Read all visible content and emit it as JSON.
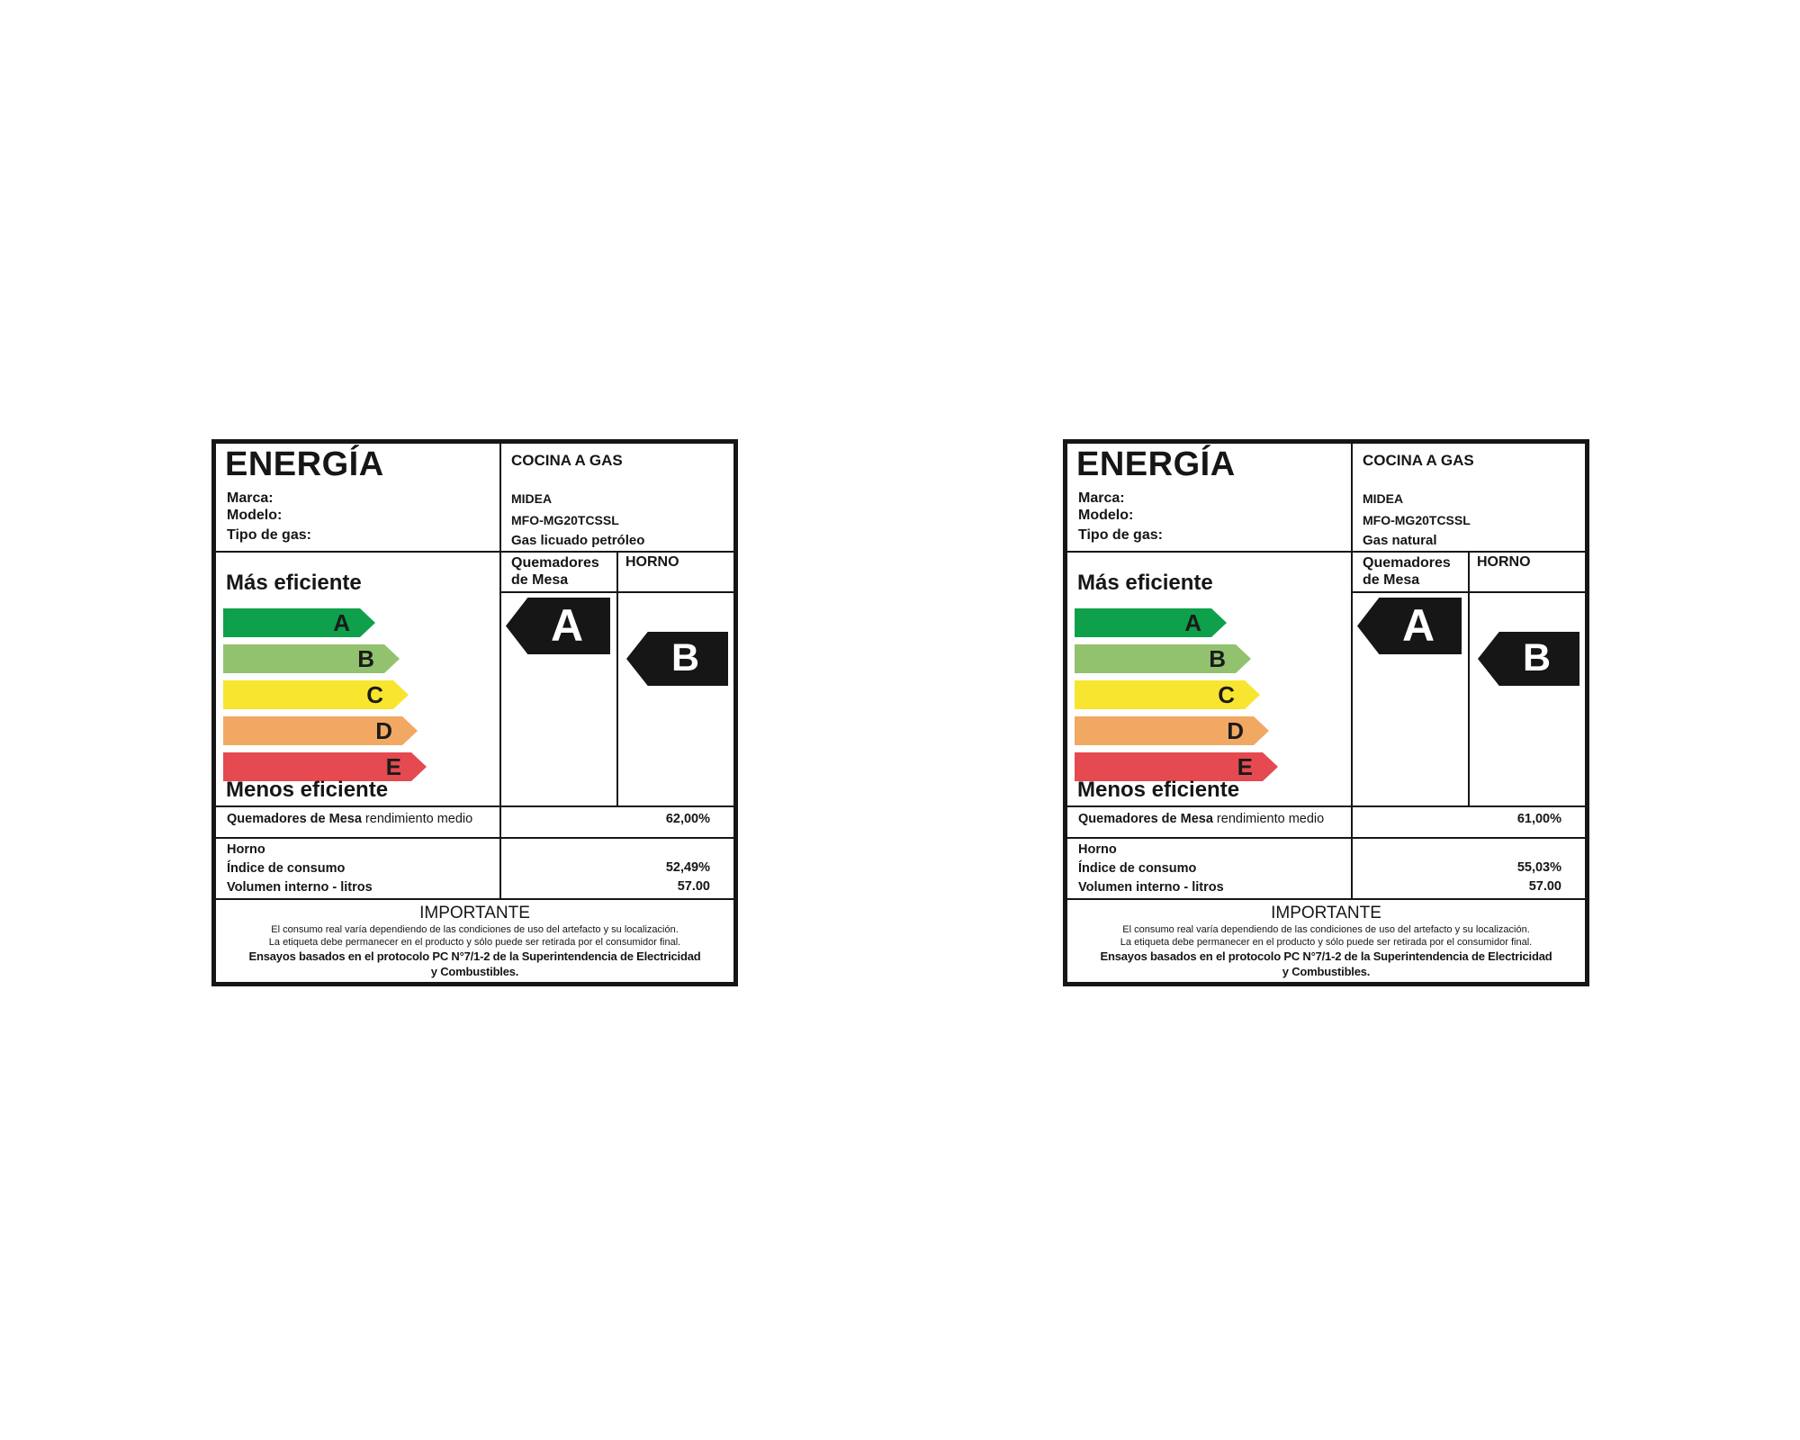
{
  "scale": {
    "grades": [
      "A",
      "B",
      "C",
      "D",
      "E"
    ],
    "colors": [
      "#0FA04C",
      "#92C26E",
      "#F8E52F",
      "#F0A863",
      "#E54A50"
    ]
  },
  "colors": {
    "rating_arrow": "#161616",
    "border": "#161616"
  },
  "labels": [
    {
      "title": "ENERGÍA",
      "product_type": "COCINA A GAS",
      "field_labels": [
        "Marca:",
        "Modelo:",
        "Tipo de gas:"
      ],
      "brand": "MIDEA",
      "model": "MFO-MG20TCSSL",
      "gas_type": "Gas licuado petróleo",
      "col_burners": "Quemadores de Mesa",
      "col_oven": "HORNO",
      "more_efficient": "Más eficiente",
      "less_efficient": "Menos eficiente",
      "burner_rating": "A",
      "oven_rating": "B",
      "burner_row_label_bold": "Quemadores de Mesa",
      "burner_row_label_rest": " rendimiento medio",
      "burner_row_value": "62,00%",
      "oven_rows": [
        "Horno",
        "Índice de consumo",
        "Volumen interno - litros"
      ],
      "oven_values": [
        "52,49%",
        "57.00"
      ],
      "important_title": "IMPORTANTE",
      "important_line1": "El consumo real varía dependiendo de las condiciones de uso del artefacto y su localización.",
      "important_line2": "La etiqueta debe permanecer en el producto y sólo puede ser retirada por el consumidor final.",
      "important_line3": "Ensayos basados en el protocolo PC N°7/1-2 de la Superintendencia de Electricidad",
      "important_line4": "y Combustibles."
    },
    {
      "title": "ENERGÍA",
      "product_type": "COCINA A GAS",
      "field_labels": [
        "Marca:",
        "Modelo:",
        "Tipo de gas:"
      ],
      "brand": "MIDEA",
      "model": "MFO-MG20TCSSL",
      "gas_type": "Gas natural",
      "col_burners": "Quemadores de Mesa",
      "col_oven": "HORNO",
      "more_efficient": "Más eficiente",
      "less_efficient": "Menos eficiente",
      "burner_rating": "A",
      "oven_rating": "B",
      "burner_row_label_bold": "Quemadores de Mesa",
      "burner_row_label_rest": " rendimiento medio",
      "burner_row_value": "61,00%",
      "oven_rows": [
        "Horno",
        "Índice de consumo",
        "Volumen interno - litros"
      ],
      "oven_values": [
        "55,03%",
        "57.00"
      ],
      "important_title": "IMPORTANTE",
      "important_line1": "El consumo real varía dependiendo de las condiciones de uso del artefacto y su localización.",
      "important_line2": "La etiqueta debe permanecer en el producto y sólo puede ser retirada por el consumidor final.",
      "important_line3": "Ensayos basados en el protocolo PC N°7/1-2 de la Superintendencia de Electricidad",
      "important_line4": "y Combustibles."
    }
  ]
}
